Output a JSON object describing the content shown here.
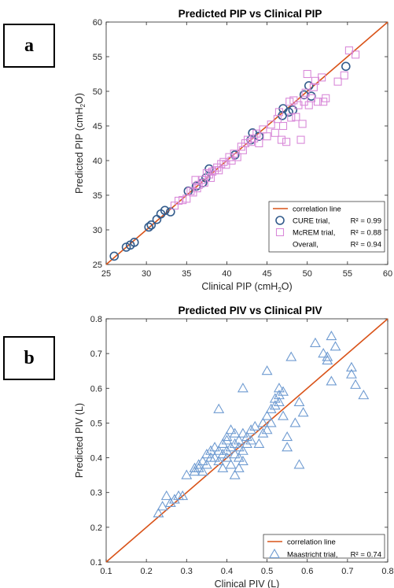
{
  "panels": {
    "a": "a",
    "b": "b"
  },
  "colors": {
    "line": "#d95319",
    "cure": "#335c8c",
    "mcrem": "#d98ad9",
    "maastricht": "#6f9bd1"
  },
  "chart_data": [
    {
      "type": "scatter",
      "title": "Predicted PIP vs Clinical PIP",
      "xlabel": "Clinical PIP (cmH2O)",
      "ylabel": "Predicted PIP (cmH2O)",
      "xlim": [
        25,
        60
      ],
      "ylim": [
        25,
        60
      ],
      "xticks": [
        "25",
        "30",
        "35",
        "40",
        "45",
        "50",
        "55",
        "60"
      ],
      "yticks": [
        "25",
        "30",
        "35",
        "40",
        "45",
        "50",
        "55",
        "60"
      ],
      "grid": false,
      "legend": "bottom-right",
      "legend_entries": [
        {
          "label": "correlation line",
          "r2": ""
        },
        {
          "label": "CURE trial,",
          "r2": "R² = 0.99"
        },
        {
          "label": "McREM trial,",
          "r2": "R² = 0.88"
        },
        {
          "label": "Overall,",
          "r2": "R² = 0.94"
        }
      ],
      "series": [
        {
          "name": "CURE trial",
          "marker": "circle",
          "color": "#335c8c",
          "points": [
            [
              26,
              26.2
            ],
            [
              27.5,
              27.5
            ],
            [
              28,
              27.8
            ],
            [
              28.5,
              28.2
            ],
            [
              30.3,
              30.4
            ],
            [
              30.6,
              30.7
            ],
            [
              31.3,
              31.5
            ],
            [
              31.8,
              32.3
            ],
            [
              32.3,
              32.8
            ],
            [
              33,
              32.6
            ],
            [
              35.2,
              35.6
            ],
            [
              36.2,
              36.3
            ],
            [
              37,
              36.8
            ],
            [
              37.4,
              37.5
            ],
            [
              37.8,
              38.8
            ],
            [
              41,
              40.8
            ],
            [
              43,
              43
            ],
            [
              43.2,
              44
            ],
            [
              44,
              43.5
            ],
            [
              46.9,
              46.5
            ],
            [
              47,
              47.5
            ],
            [
              47.7,
              47
            ],
            [
              48.2,
              47.3
            ],
            [
              49.6,
              49.5
            ],
            [
              50.2,
              50.8
            ],
            [
              50.5,
              49.3
            ],
            [
              54.8,
              53.6
            ]
          ]
        },
        {
          "name": "McREM trial",
          "marker": "square",
          "color": "#d98ad9",
          "points": [
            [
              33.5,
              33.5
            ],
            [
              34,
              34.2
            ],
            [
              34.5,
              34.3
            ],
            [
              35,
              34.5
            ],
            [
              35.5,
              35.6
            ],
            [
              35.8,
              35.4
            ],
            [
              36.1,
              37.2
            ],
            [
              36.3,
              36
            ],
            [
              36.5,
              36.5
            ],
            [
              36.9,
              37.2
            ],
            [
              37.2,
              36.8
            ],
            [
              37.5,
              38.2
            ],
            [
              37.8,
              38
            ],
            [
              38,
              37.5
            ],
            [
              38.2,
              38.4
            ],
            [
              38.5,
              38.6
            ],
            [
              38.8,
              39
            ],
            [
              39,
              38.6
            ],
            [
              39.3,
              39.5
            ],
            [
              39.6,
              39.8
            ],
            [
              39.9,
              39.4
            ],
            [
              40.3,
              40.5
            ],
            [
              40.6,
              40
            ],
            [
              40.9,
              41
            ],
            [
              41.3,
              40.5
            ],
            [
              41.8,
              42
            ],
            [
              42,
              41.5
            ],
            [
              42.3,
              42.5
            ],
            [
              42.6,
              43
            ],
            [
              43,
              42.7
            ],
            [
              43.4,
              43.2
            ],
            [
              43.7,
              43.9
            ],
            [
              44,
              42.5
            ],
            [
              44.5,
              44.5
            ],
            [
              45,
              43.5
            ],
            [
              45.5,
              45.2
            ],
            [
              46,
              44
            ],
            [
              46.3,
              46
            ],
            [
              46.5,
              47
            ],
            [
              46.8,
              43
            ],
            [
              47,
              45
            ],
            [
              47.4,
              42.7
            ],
            [
              47.8,
              48.5
            ],
            [
              48,
              46.2
            ],
            [
              48.3,
              48.7
            ],
            [
              48.6,
              46.3
            ],
            [
              48.9,
              48
            ],
            [
              49.2,
              43
            ],
            [
              49.4,
              45.3
            ],
            [
              49.6,
              48.5
            ],
            [
              49.8,
              49.8
            ],
            [
              50,
              52.5
            ],
            [
              50.2,
              48
            ],
            [
              50.5,
              49
            ],
            [
              50.8,
              50.6
            ],
            [
              51,
              51.5
            ],
            [
              51.3,
              48.5
            ],
            [
              51.8,
              52
            ],
            [
              52,
              48.5
            ],
            [
              52.3,
              49
            ],
            [
              53.8,
              51.4
            ],
            [
              54.6,
              52.3
            ],
            [
              55.2,
              55.9
            ],
            [
              56,
              55.3
            ]
          ]
        }
      ]
    },
    {
      "type": "scatter",
      "title": "Predicted PIV vs Clinical PIV",
      "xlabel": "Clinical PIV (L)",
      "ylabel": "Predicted PIV (L)",
      "xlim": [
        0.1,
        0.8
      ],
      "ylim": [
        0.1,
        0.8
      ],
      "xticks": [
        "0.1",
        "0.2",
        "0.3",
        "0.4",
        "0.5",
        "0.6",
        "0.7",
        "0.8"
      ],
      "yticks": [
        "0.1",
        "0.2",
        "0.3",
        "0.4",
        "0.5",
        "0.6",
        "0.7",
        "0.8"
      ],
      "grid": false,
      "legend": "bottom-right",
      "legend_entries": [
        {
          "label": "correlation line",
          "r2": ""
        },
        {
          "label": "Maastricht trial,",
          "r2": "R² = 0.74"
        }
      ],
      "series": [
        {
          "name": "Maastricht trial",
          "marker": "triangle",
          "color": "#6f9bd1",
          "points": [
            [
              0.23,
              0.24
            ],
            [
              0.24,
              0.26
            ],
            [
              0.25,
              0.29
            ],
            [
              0.26,
              0.27
            ],
            [
              0.27,
              0.28
            ],
            [
              0.28,
              0.29
            ],
            [
              0.29,
              0.29
            ],
            [
              0.3,
              0.35
            ],
            [
              0.32,
              0.37
            ],
            [
              0.32,
              0.36
            ],
            [
              0.33,
              0.38
            ],
            [
              0.33,
              0.37
            ],
            [
              0.34,
              0.39
            ],
            [
              0.34,
              0.36
            ],
            [
              0.35,
              0.38
            ],
            [
              0.35,
              0.41
            ],
            [
              0.36,
              0.4
            ],
            [
              0.36,
              0.42
            ],
            [
              0.37,
              0.43
            ],
            [
              0.37,
              0.4
            ],
            [
              0.38,
              0.42
            ],
            [
              0.38,
              0.39
            ],
            [
              0.38,
              0.54
            ],
            [
              0.39,
              0.44
            ],
            [
              0.39,
              0.41
            ],
            [
              0.39,
              0.37
            ],
            [
              0.4,
              0.45
            ],
            [
              0.4,
              0.42
            ],
            [
              0.4,
              0.4
            ],
            [
              0.4,
              0.46
            ],
            [
              0.41,
              0.43
            ],
            [
              0.41,
              0.38
            ],
            [
              0.41,
              0.48
            ],
            [
              0.42,
              0.44
            ],
            [
              0.42,
              0.41
            ],
            [
              0.42,
              0.35
            ],
            [
              0.42,
              0.47
            ],
            [
              0.43,
              0.43
            ],
            [
              0.43,
              0.4
            ],
            [
              0.43,
              0.37
            ],
            [
              0.43,
              0.45
            ],
            [
              0.44,
              0.42
            ],
            [
              0.44,
              0.39
            ],
            [
              0.44,
              0.47
            ],
            [
              0.44,
              0.6
            ],
            [
              0.45,
              0.44
            ],
            [
              0.45,
              0.46
            ],
            [
              0.46,
              0.48
            ],
            [
              0.46,
              0.45
            ],
            [
              0.47,
              0.49
            ],
            [
              0.48,
              0.44
            ],
            [
              0.49,
              0.5
            ],
            [
              0.49,
              0.47
            ],
            [
              0.5,
              0.52
            ],
            [
              0.5,
              0.48
            ],
            [
              0.5,
              0.65
            ],
            [
              0.51,
              0.54
            ],
            [
              0.51,
              0.5
            ],
            [
              0.52,
              0.57
            ],
            [
              0.52,
              0.55
            ],
            [
              0.53,
              0.58
            ],
            [
              0.53,
              0.56
            ],
            [
              0.53,
              0.6
            ],
            [
              0.54,
              0.59
            ],
            [
              0.54,
              0.52
            ],
            [
              0.55,
              0.46
            ],
            [
              0.55,
              0.43
            ],
            [
              0.56,
              0.69
            ],
            [
              0.57,
              0.5
            ],
            [
              0.58,
              0.56
            ],
            [
              0.58,
              0.38
            ],
            [
              0.59,
              0.53
            ],
            [
              0.62,
              0.73
            ],
            [
              0.64,
              0.7
            ],
            [
              0.65,
              0.69
            ],
            [
              0.65,
              0.68
            ],
            [
              0.66,
              0.62
            ],
            [
              0.66,
              0.75
            ],
            [
              0.67,
              0.72
            ],
            [
              0.71,
              0.66
            ],
            [
              0.71,
              0.64
            ],
            [
              0.72,
              0.61
            ],
            [
              0.74,
              0.58
            ]
          ]
        }
      ]
    }
  ]
}
